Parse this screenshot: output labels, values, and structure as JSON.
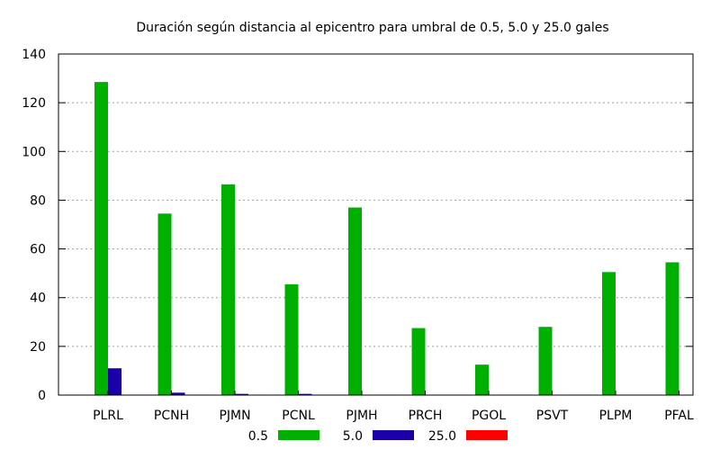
{
  "chart_data": {
    "type": "bar",
    "title": "Duración según distancia al epicentro para umbral de 0.5, 5.0 y 25.0 gales",
    "xlabel": "",
    "ylabel": "",
    "categories": [
      "PLRL",
      "PCNH",
      "PJMN",
      "PCNL",
      "PJMH",
      "PRCH",
      "PGOL",
      "PSVT",
      "PLPM",
      "PFAL"
    ],
    "series": [
      {
        "name": "0.5",
        "color": "#00b000",
        "values": [
          128.5,
          74.5,
          86.5,
          45.5,
          77,
          27.5,
          12.5,
          28,
          50.5,
          54.5
        ]
      },
      {
        "name": "5.0",
        "color": "#1a00a8",
        "values": [
          11,
          1,
          0.5,
          0.5,
          0,
          0,
          0,
          0,
          0,
          0
        ]
      },
      {
        "name": "25.0",
        "color": "#ff0000",
        "values": [
          0,
          0,
          0,
          0,
          0,
          0,
          0,
          0,
          0,
          0
        ]
      }
    ],
    "ylim": [
      0,
      140
    ],
    "yticks": [
      0,
      20,
      40,
      60,
      80,
      100,
      120,
      140
    ],
    "grid": true,
    "legend": "bottom"
  }
}
